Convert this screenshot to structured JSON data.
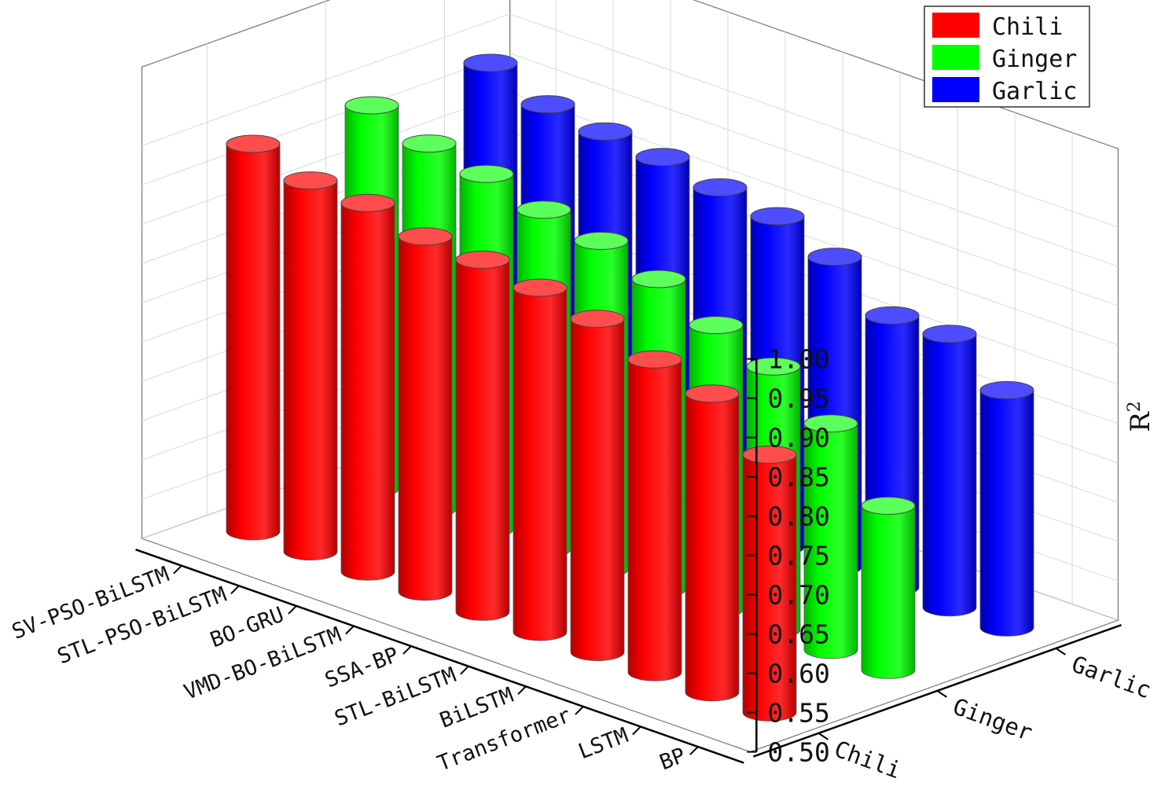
{
  "chart_data": {
    "type": "bar",
    "subtype": "3d-cylinder",
    "title": "",
    "zlabel": "R",
    "zlabel_superscript": "2",
    "zlim": [
      0.5,
      1.0
    ],
    "zticks": [
      "0.50",
      "0.55",
      "0.60",
      "0.65",
      "0.70",
      "0.75",
      "0.80",
      "0.85",
      "0.90",
      "0.95",
      "1.00"
    ],
    "categories": [
      "SV-PSO-BiLSTM",
      "STL-PSO-BiLSTM",
      "BO-GRU",
      "VMD-BO-BiLSTM",
      "SSA-BP",
      "STL-BiLSTM",
      "BiLSTM",
      "Transformer",
      "LSTM",
      "BP"
    ],
    "series_axis_labels": [
      "Chili",
      "Ginger",
      "Garlic"
    ],
    "legend": {
      "position": "top-right"
    },
    "grid": true,
    "series": [
      {
        "name": "Chili",
        "color": "#ff0000",
        "values": [
          0.993,
          0.972,
          0.969,
          0.952,
          0.948,
          0.938,
          0.924,
          0.898,
          0.88,
          0.828
        ]
      },
      {
        "name": "Ginger",
        "color": "#00ff00",
        "values": [
          0.988,
          0.965,
          0.952,
          0.932,
          0.918,
          0.895,
          0.862,
          0.835,
          0.788,
          0.709
        ]
      },
      {
        "name": "Garlic",
        "color": "#0000ff",
        "values": [
          0.988,
          0.961,
          0.952,
          0.945,
          0.932,
          0.921,
          0.895,
          0.846,
          0.848,
          0.802
        ]
      }
    ]
  }
}
